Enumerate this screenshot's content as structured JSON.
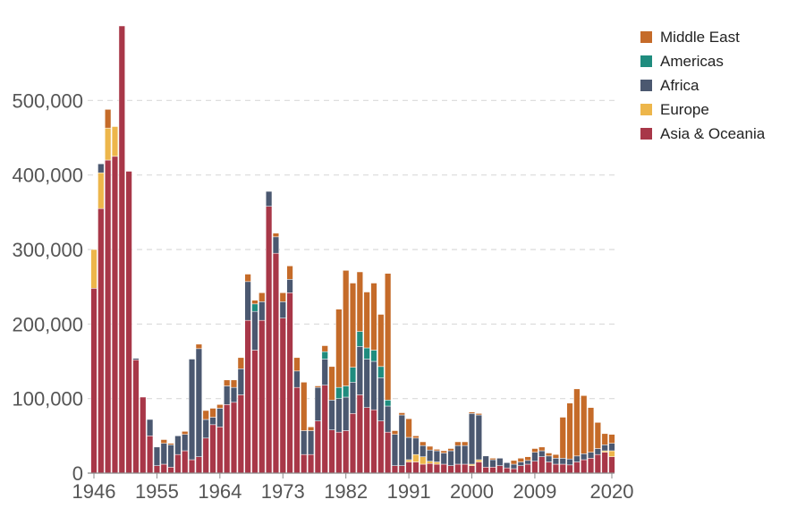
{
  "chart_data": {
    "type": "bar",
    "stacked": true,
    "title": "",
    "xlabel": "",
    "ylabel": "",
    "ylim": [
      0,
      600000
    ],
    "y_ticks": [
      {
        "value": 0,
        "label": "0"
      },
      {
        "value": 100000,
        "label": "100,000"
      },
      {
        "value": 200000,
        "label": "200,000"
      },
      {
        "value": 300000,
        "label": "300,000"
      },
      {
        "value": 400000,
        "label": "400,000"
      },
      {
        "value": 500000,
        "label": "500,000"
      }
    ],
    "x_tick_labels": [
      "1946",
      "1955",
      "1964",
      "1973",
      "1982",
      "1991",
      "2000",
      "2009",
      "2020"
    ],
    "years": [
      1946,
      1947,
      1948,
      1949,
      1950,
      1951,
      1952,
      1953,
      1954,
      1955,
      1956,
      1957,
      1958,
      1959,
      1960,
      1961,
      1962,
      1963,
      1964,
      1965,
      1966,
      1967,
      1968,
      1969,
      1970,
      1971,
      1972,
      1973,
      1974,
      1975,
      1976,
      1977,
      1978,
      1979,
      1980,
      1981,
      1982,
      1983,
      1984,
      1985,
      1986,
      1987,
      1988,
      1989,
      1990,
      1991,
      1992,
      1993,
      1994,
      1995,
      1996,
      1997,
      1998,
      1999,
      2000,
      2001,
      2002,
      2003,
      2004,
      2005,
      2006,
      2007,
      2008,
      2009,
      2010,
      2011,
      2012,
      2013,
      2014,
      2015,
      2016,
      2017,
      2018,
      2019,
      2020
    ],
    "legend_position": "top-right",
    "grid": true,
    "series": [
      {
        "name": "Asia & Oceania",
        "color": "#a83748",
        "values": [
          248000,
          355000,
          420000,
          425000,
          600000,
          405000,
          152000,
          102000,
          50000,
          10000,
          12000,
          8000,
          25000,
          30000,
          18000,
          22000,
          47000,
          65000,
          62000,
          92000,
          95000,
          105000,
          205000,
          165000,
          205000,
          358000,
          295000,
          208000,
          242000,
          115000,
          25000,
          25000,
          70000,
          118000,
          58000,
          55000,
          57000,
          80000,
          105000,
          88000,
          85000,
          70000,
          55000,
          10000,
          10000,
          15000,
          15000,
          12000,
          13000,
          12000,
          12000,
          10000,
          12000,
          12000,
          10000,
          15000,
          8000,
          8000,
          10000,
          7000,
          6000,
          10000,
          12000,
          16000,
          22000,
          15000,
          12000,
          12000,
          11000,
          15000,
          18000,
          20000,
          25000,
          28000,
          22000
        ]
      },
      {
        "name": "Europe",
        "color": "#edb64b",
        "values": [
          52000,
          48000,
          43000,
          40000,
          0,
          0,
          0,
          0,
          0,
          0,
          0,
          0,
          0,
          0,
          0,
          0,
          0,
          0,
          0,
          0,
          0,
          0,
          0,
          0,
          0,
          0,
          0,
          0,
          0,
          0,
          0,
          0,
          0,
          0,
          0,
          0,
          0,
          0,
          0,
          0,
          0,
          0,
          0,
          0,
          0,
          3000,
          10000,
          10000,
          3000,
          3000,
          0,
          0,
          0,
          0,
          2000,
          3000,
          0,
          0,
          0,
          0,
          0,
          0,
          0,
          0,
          0,
          0,
          0,
          0,
          0,
          0,
          0,
          0,
          0,
          2000,
          8000
        ]
      },
      {
        "name": "Africa",
        "color": "#4b5870",
        "values": [
          0,
          12000,
          0,
          0,
          0,
          0,
          2000,
          0,
          22000,
          25000,
          28000,
          30000,
          25000,
          22000,
          135000,
          145000,
          25000,
          10000,
          25000,
          25000,
          20000,
          35000,
          52000,
          52000,
          25000,
          20000,
          22000,
          22000,
          18000,
          22000,
          32000,
          32000,
          45000,
          35000,
          40000,
          45000,
          45000,
          42000,
          65000,
          65000,
          65000,
          58000,
          35000,
          42000,
          68000,
          30000,
          22000,
          15000,
          15000,
          15000,
          15000,
          20000,
          25000,
          25000,
          68000,
          60000,
          15000,
          10000,
          10000,
          7000,
          6000,
          5000,
          5000,
          12000,
          8000,
          8000,
          8000,
          8000,
          8000,
          8000,
          8000,
          8000,
          8000,
          8000,
          10000
        ]
      },
      {
        "name": "Americas",
        "color": "#1f8c7e",
        "values": [
          0,
          0,
          0,
          0,
          0,
          0,
          0,
          0,
          0,
          0,
          0,
          0,
          0,
          0,
          0,
          0,
          0,
          0,
          0,
          0,
          0,
          0,
          0,
          10000,
          0,
          0,
          0,
          0,
          0,
          0,
          0,
          0,
          0,
          10000,
          0,
          15000,
          15000,
          20000,
          20000,
          15000,
          15000,
          15000,
          8000,
          0,
          0,
          0,
          0,
          0,
          0,
          0,
          0,
          0,
          0,
          0,
          0,
          0,
          0,
          0,
          0,
          0,
          0,
          0,
          0,
          0,
          0,
          0,
          0,
          0,
          0,
          0,
          0,
          0,
          0,
          0,
          0
        ]
      },
      {
        "name": "Middle East",
        "color": "#c56b29",
        "values": [
          0,
          0,
          25000,
          0,
          0,
          0,
          0,
          0,
          0,
          0,
          5000,
          2000,
          0,
          4000,
          0,
          6000,
          12000,
          12000,
          5000,
          8000,
          10000,
          15000,
          10000,
          5000,
          12000,
          0,
          5000,
          12000,
          18000,
          18000,
          65000,
          5000,
          2000,
          8000,
          45000,
          105000,
          155000,
          113000,
          80000,
          75000,
          90000,
          70000,
          170000,
          5000,
          3000,
          25000,
          3000,
          5000,
          5000,
          2000,
          3000,
          3000,
          5000,
          5000,
          2000,
          2000,
          0,
          2000,
          0,
          0,
          5000,
          5000,
          5000,
          5000,
          5000,
          4000,
          5000,
          55000,
          75000,
          90000,
          78000,
          60000,
          35000,
          15000,
          12000
        ]
      }
    ]
  }
}
